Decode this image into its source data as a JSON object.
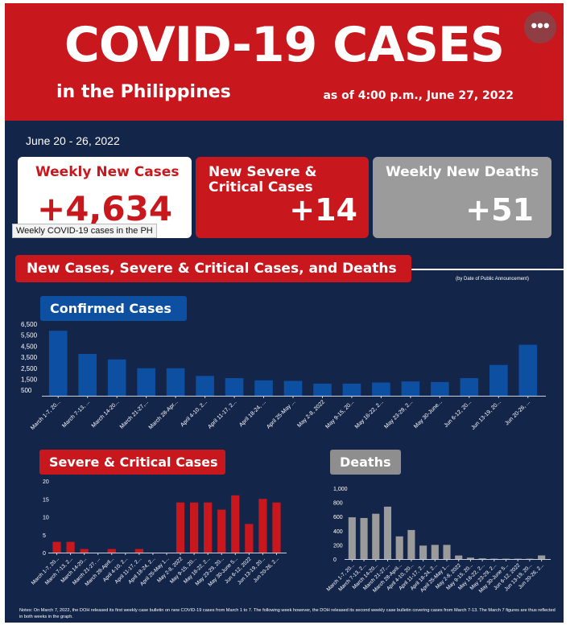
{
  "header": {
    "title": "COVID-19 CASES",
    "subtitle": "in the Philippines",
    "as_of": "as of 4:00 p.m., June 27, 2022",
    "more_icon": "ellipsis-icon",
    "more_glyph": "•••"
  },
  "date_range": "June 20 - 26, 2022",
  "cards": {
    "cases": {
      "label": "Weekly New Cases",
      "value": "+4,634"
    },
    "severe": {
      "label": "New Severe & Critical Cases",
      "value": "+14"
    },
    "deaths": {
      "label": "Weekly New Deaths",
      "value": "+51"
    }
  },
  "tooltip": "Weekly COVID-19 cases in the PH",
  "section": {
    "title": "New Cases, Severe & Critical Cases, and Deaths",
    "note": "(by Date of Public Announcement)"
  },
  "colors": {
    "red": "#c8181e",
    "blue": "#0d4fa0",
    "gray": "#9b9b9b",
    "navy": "#14254a"
  },
  "notes": "Notes: On March 7, 2022, the DOH released its first weekly case bulletin on new COVID-19 cases from March 1 to 7. The following week however, the DOH released its second weekly case bulletin covering cases from March 7-13. The March 7 figures are thus reflected in both weeks in the graph.",
  "chart_data": [
    {
      "type": "bar",
      "title": "Confirmed Cases",
      "color": "#0d4fa0",
      "categories": [
        "March 1-7, 20...",
        "March 7-13, ...",
        "March 14-20...",
        "March 21-27,...",
        "March 28-Apr...",
        "April 4-10, 2...",
        "April 11-17, 2...",
        "April 18-24, ...",
        "April 25-May ...",
        "May 2-8, 2022",
        "May 9-15, 20...",
        "May 16-22, 2...",
        "May 23-29, 2...",
        "May 30-June...",
        "Jun 6-12, 20...",
        "Jun 13-19, 20...",
        "Jun 20-26, ..."
      ],
      "values": [
        5900,
        3800,
        3300,
        2500,
        2500,
        1800,
        1600,
        1400,
        1350,
        1100,
        1100,
        1200,
        1300,
        1250,
        1600,
        2800,
        4634
      ],
      "yticks": [
        500,
        1500,
        2500,
        3500,
        4500,
        5500,
        6500
      ],
      "ylim": [
        0,
        6500
      ]
    },
    {
      "type": "bar",
      "title": "Severe & Critical Cases",
      "color": "#c8181e",
      "categories": [
        "March 1-7, 20...",
        "March 7-13, 2...",
        "March 14-20...",
        "March 21-27, ...",
        "March 28-April...",
        "April 4-10, 2...",
        "April 11-17, 2...",
        "April 18-24, 2...",
        "April 25-May 1...",
        "May 2-8, 2022",
        "May 9-15, 20...",
        "May 16-22, 2...",
        "May 23-29, 20...",
        "May 30-June 5...",
        "Jun 6-12, 2022",
        "Jun 13-19, 20...",
        "Jun 20-26, 2..."
      ],
      "values": [
        3,
        3,
        1,
        0,
        1,
        0,
        1,
        0,
        0,
        14,
        14,
        14,
        12,
        16,
        8,
        15,
        14
      ],
      "yticks": [
        0,
        5,
        10,
        15,
        20
      ],
      "ylim": [
        0,
        20
      ]
    },
    {
      "type": "bar",
      "title": "Deaths",
      "color": "#9b9b9b",
      "categories": [
        "March 1-7, 20...",
        "March 7-13, 2...",
        "March 14-20...",
        "March 21-27,...",
        "March 28-April...",
        "April 4-10, 20...",
        "April 11-17, 2...",
        "April 18-24, 2...",
        "April 25-May 1...",
        "May 2-8, 2022",
        "May 9-15, 20...",
        "May 16-22, 2...",
        "May 23-29, 2...",
        "May 30-June 5...",
        "Jun 6-12, 2022",
        "Jun 13-19, 20...",
        "Jun 20-26, 2..."
      ],
      "values": [
        590,
        580,
        640,
        740,
        320,
        410,
        190,
        200,
        200,
        50,
        20,
        10,
        5,
        5,
        5,
        5,
        51
      ],
      "yticks": [
        0,
        200,
        400,
        600,
        800,
        1000
      ],
      "ylim": [
        0,
        1000
      ]
    }
  ]
}
